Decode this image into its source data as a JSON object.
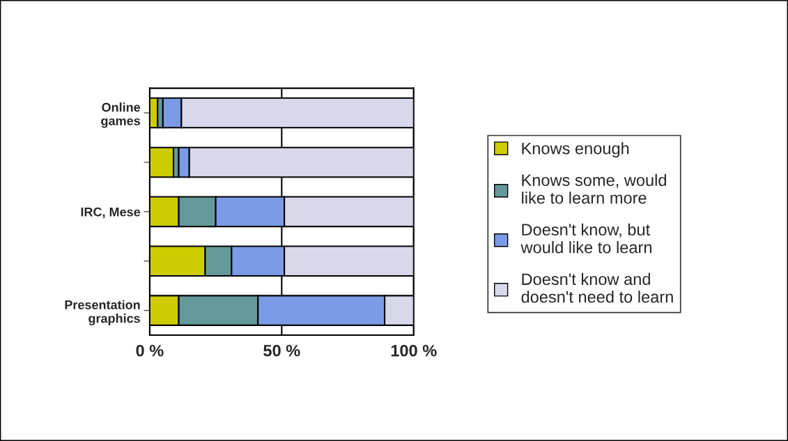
{
  "chart_data": {
    "type": "bar",
    "orientation": "horizontal",
    "stacked": true,
    "categories": [
      "Online games",
      null,
      "IRC, Mese",
      null,
      "Presentation graphics"
    ],
    "series": [
      {
        "name": "Knows enough",
        "color": "#cccc00",
        "values": [
          3,
          9,
          11,
          21,
          11
        ]
      },
      {
        "name": "Knows some, would like to learn more",
        "color": "#669999",
        "values": [
          2,
          2,
          14,
          10,
          30
        ]
      },
      {
        "name": "Doesn't know, but would like to learn",
        "color": "#7b9be6",
        "values": [
          7,
          4,
          26,
          20,
          48
        ]
      },
      {
        "name": "Doesn't know and doesn't need to learn",
        "color": "#d8d8ec",
        "values": [
          88,
          85,
          49,
          49,
          11
        ]
      }
    ],
    "xlim": [
      0,
      100
    ],
    "xticks": [
      {
        "value": 0,
        "label": "0 %"
      },
      {
        "value": 50,
        "label": "50 %"
      },
      {
        "value": 100,
        "label": "100 %"
      }
    ],
    "grid": "x",
    "legend": "right"
  }
}
